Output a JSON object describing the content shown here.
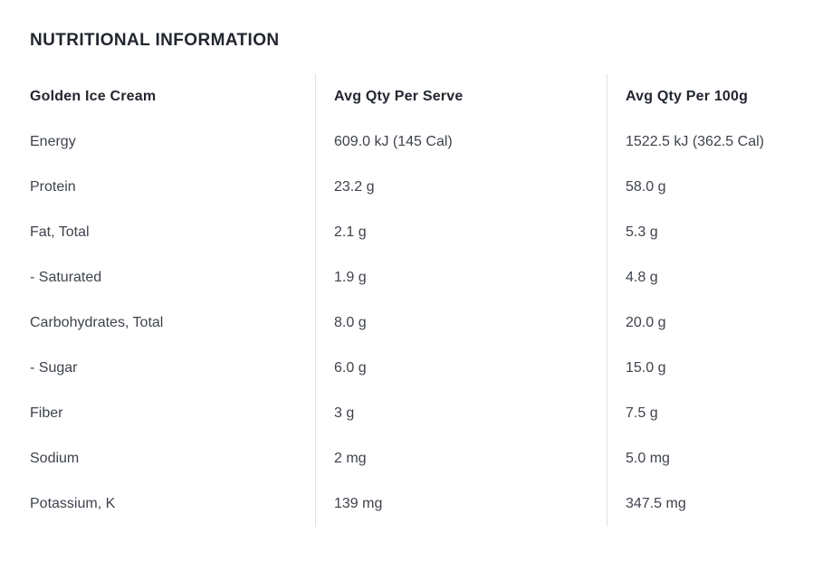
{
  "title": "NUTRITIONAL INFORMATION",
  "table": {
    "headers": [
      "Golden Ice Cream",
      "Avg Qty Per Serve",
      "Avg Qty Per 100g"
    ],
    "rows": [
      {
        "label": "Energy",
        "per_serve": "609.0 kJ (145 Cal)",
        "per_100g": "1522.5 kJ (362.5 Cal)"
      },
      {
        "label": "Protein",
        "per_serve": "23.2 g",
        "per_100g": "58.0 g"
      },
      {
        "label": "Fat, Total",
        "per_serve": "2.1 g",
        "per_100g": "5.3 g"
      },
      {
        "label": "- Saturated",
        "per_serve": "1.9 g",
        "per_100g": "4.8 g"
      },
      {
        "label": "Carbohydrates, Total",
        "per_serve": "8.0 g",
        "per_100g": "20.0 g"
      },
      {
        "label": "- Sugar",
        "per_serve": "6.0 g",
        "per_100g": "15.0 g"
      },
      {
        "label": "Fiber",
        "per_serve": "3 g",
        "per_100g": "7.5 g"
      },
      {
        "label": "Sodium",
        "per_serve": "2 mg",
        "per_100g": "5.0 mg"
      },
      {
        "label": "Potassium, K",
        "per_serve": "139 mg",
        "per_100g": "347.5 mg"
      }
    ]
  },
  "colors": {
    "divider": "#e1e1e5",
    "heading_text": "#23272f",
    "body_text": "#3e434c",
    "background": "#ffffff"
  }
}
